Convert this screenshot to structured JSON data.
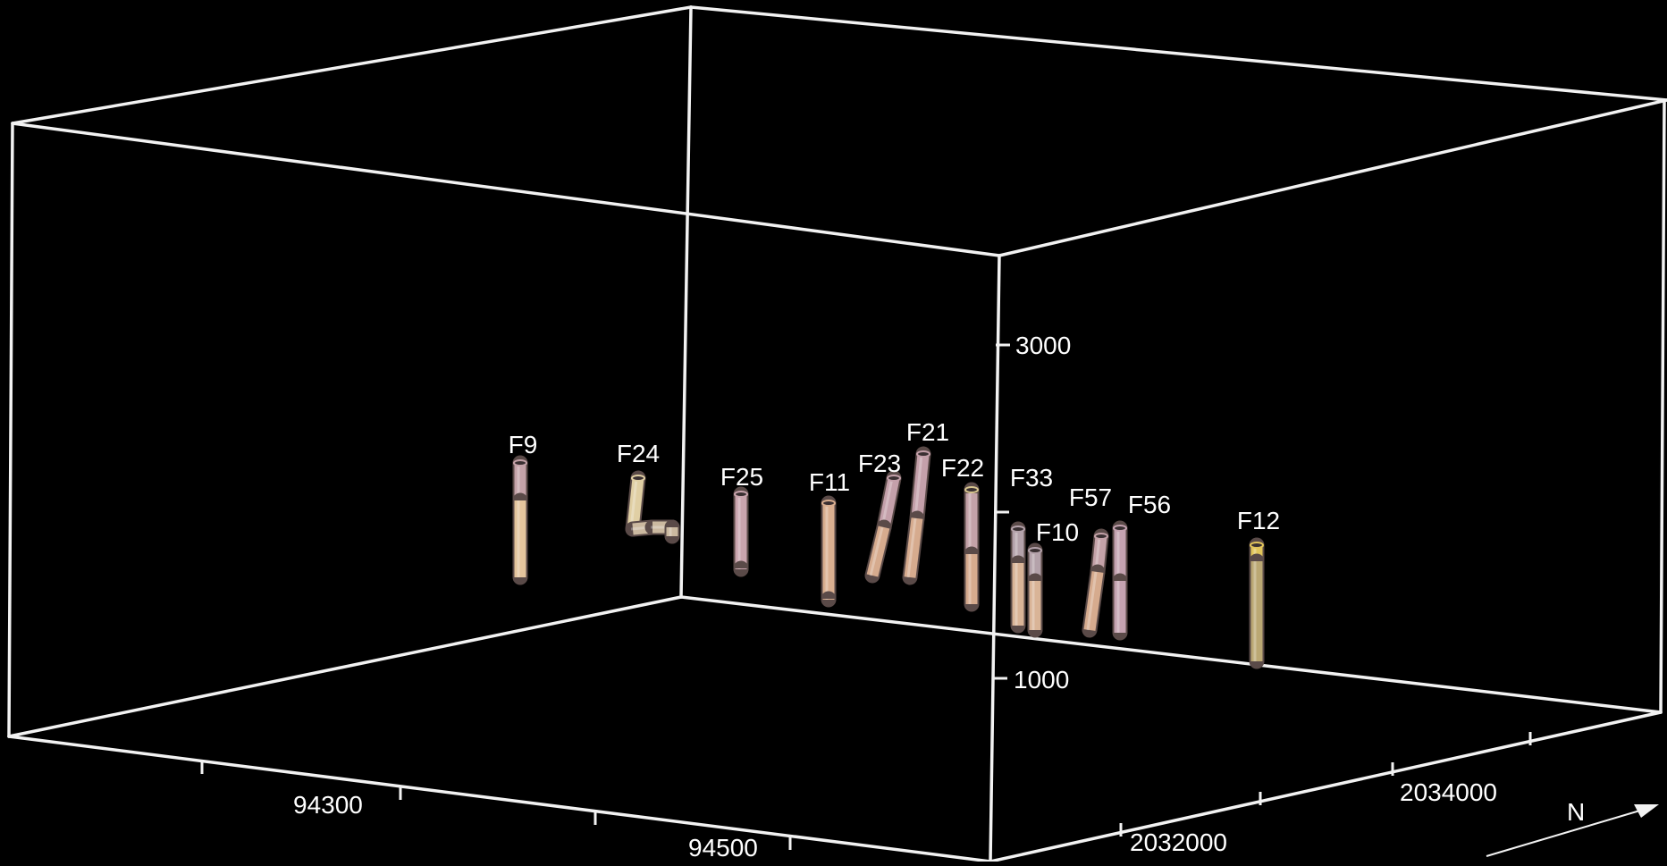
{
  "background_color": "#000000",
  "line_color": "#f2f2f2",
  "axes": {
    "x_ticks": [
      "94300",
      "94500"
    ],
    "y_ticks": [
      "2032000",
      "2034000"
    ],
    "z_ticks": [
      "3000",
      "1000"
    ]
  },
  "north_arrow": {
    "label": "N"
  },
  "wells": [
    {
      "id": "F9",
      "label": "F9",
      "colors": [
        "#c4a2a8",
        "#e4c49c"
      ]
    },
    {
      "id": "F24",
      "label": "F24",
      "colors": [
        "#e0cfa4",
        "#cbb9a0"
      ]
    },
    {
      "id": "F25",
      "label": "F25",
      "colors": [
        "#c9a4ad",
        "#c9a4ad"
      ]
    },
    {
      "id": "F11",
      "label": "F11",
      "colors": [
        "#d9ae8f",
        "#d9ae8f"
      ]
    },
    {
      "id": "F23",
      "label": "F23",
      "colors": [
        "#c4a0aa",
        "#d6ab8e"
      ]
    },
    {
      "id": "F21",
      "label": "F21",
      "colors": [
        "#c4a0aa",
        "#d6ab8e"
      ]
    },
    {
      "id": "F22",
      "label": "F22",
      "colors": [
        "#d8c58f",
        "#c4a2a8",
        "#d6ab8e"
      ]
    },
    {
      "id": "F33",
      "label": "F33",
      "colors": [
        "#b4a2aa",
        "#d9b497"
      ]
    },
    {
      "id": "F10",
      "label": "F10",
      "colors": [
        "#b4a2aa",
        "#d9b497"
      ]
    },
    {
      "id": "F57",
      "label": "F57",
      "colors": [
        "#c4a2a8",
        "#d6ab8e"
      ]
    },
    {
      "id": "F56",
      "label": "F56",
      "colors": [
        "#c4a2b0",
        "#c4a2b0"
      ]
    },
    {
      "id": "F12",
      "label": "F12",
      "colors": [
        "#e2c55a",
        "#bba874"
      ]
    }
  ]
}
